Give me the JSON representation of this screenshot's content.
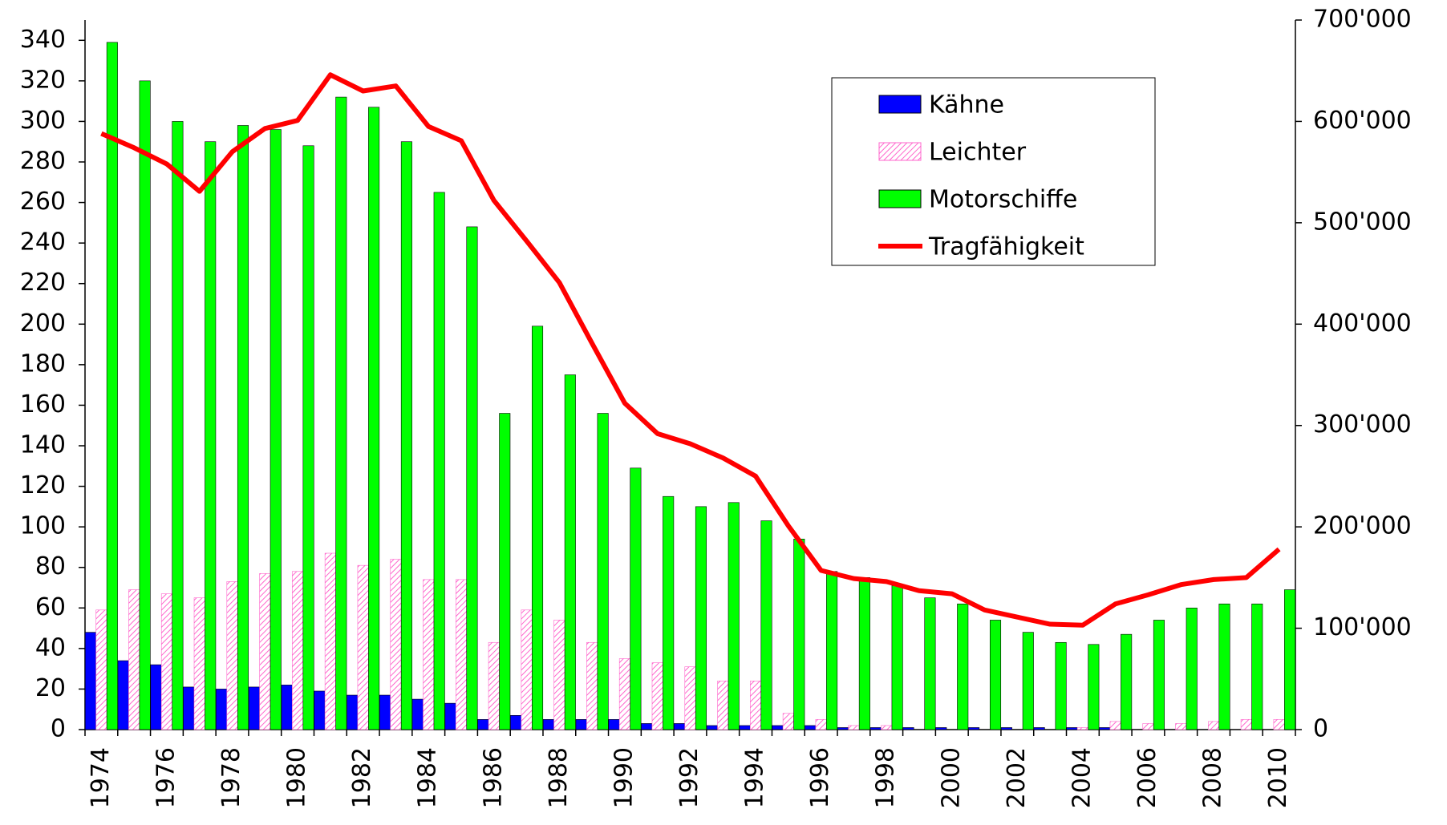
{
  "chart_data": {
    "type": "bar",
    "categories": [
      "1974",
      null,
      "1976",
      null,
      "1978",
      null,
      "1980",
      null,
      "1982",
      null,
      "1984",
      null,
      "1986",
      null,
      "1988",
      null,
      "1990",
      null,
      "1992",
      null,
      "1994",
      null,
      "1996",
      null,
      "1998",
      null,
      "2000",
      null,
      "2002",
      null,
      "2004",
      null,
      "2006",
      null,
      "2008",
      null,
      "2010"
    ],
    "series": [
      {
        "name": "Kähne",
        "color": "#0000ff",
        "values": [
          48,
          34,
          32,
          21,
          20,
          21,
          22,
          19,
          17,
          17,
          15,
          13,
          5,
          7,
          5,
          5,
          5,
          3,
          3,
          2,
          2,
          2,
          2,
          1,
          1,
          1,
          1,
          1,
          1,
          1,
          1,
          1,
          0,
          0,
          0,
          0,
          0
        ]
      },
      {
        "name": "Leichter",
        "color": "#ff66cc",
        "pattern": "hatch",
        "values": [
          59,
          69,
          67,
          65,
          73,
          77,
          78,
          87,
          81,
          84,
          74,
          74,
          43,
          59,
          54,
          43,
          35,
          33,
          31,
          24,
          24,
          8,
          5,
          2,
          2,
          0,
          0,
          0,
          0,
          0,
          1,
          4,
          3,
          3,
          4,
          5,
          5
        ]
      },
      {
        "name": "Motorschiffe",
        "color": "#00ff00",
        "values": [
          339,
          320,
          300,
          290,
          298,
          296,
          288,
          312,
          307,
          290,
          265,
          248,
          156,
          199,
          175,
          156,
          129,
          115,
          110,
          112,
          103,
          94,
          78,
          75,
          71,
          65,
          62,
          54,
          48,
          43,
          42,
          47,
          54,
          60,
          62,
          62,
          69
        ]
      },
      {
        "name": "Tragfähigkeit",
        "color": "#ff0000",
        "type": "line",
        "axis": "y2",
        "values": [
          588000,
          574000,
          558000,
          531000,
          570000,
          593000,
          601000,
          646000,
          630000,
          635000,
          595000,
          581000,
          522000,
          482000,
          441000,
          381000,
          322000,
          292000,
          282000,
          268000,
          250000,
          201000,
          157000,
          149000,
          146000,
          137000,
          134000,
          118000,
          111000,
          104000,
          103000,
          124000,
          133000,
          143000,
          148000,
          150000,
          178000
        ]
      }
    ],
    "ylim": [
      0,
      350
    ],
    "yticks": [
      0,
      20,
      40,
      60,
      80,
      100,
      120,
      140,
      160,
      180,
      200,
      220,
      240,
      260,
      280,
      300,
      320,
      340
    ],
    "y2lim": [
      0,
      700000
    ],
    "y2ticks": [
      0,
      {
        "value": 100000,
        "label": "100'000"
      },
      {
        "value": 200000,
        "label": "200'000"
      },
      {
        "value": 300000,
        "label": "300'000"
      },
      {
        "value": 400000,
        "label": "400'000"
      },
      {
        "value": 500000,
        "label": "500'000"
      },
      {
        "value": 600000,
        "label": "600'000"
      },
      {
        "value": 700000,
        "label": "700'000"
      }
    ]
  }
}
